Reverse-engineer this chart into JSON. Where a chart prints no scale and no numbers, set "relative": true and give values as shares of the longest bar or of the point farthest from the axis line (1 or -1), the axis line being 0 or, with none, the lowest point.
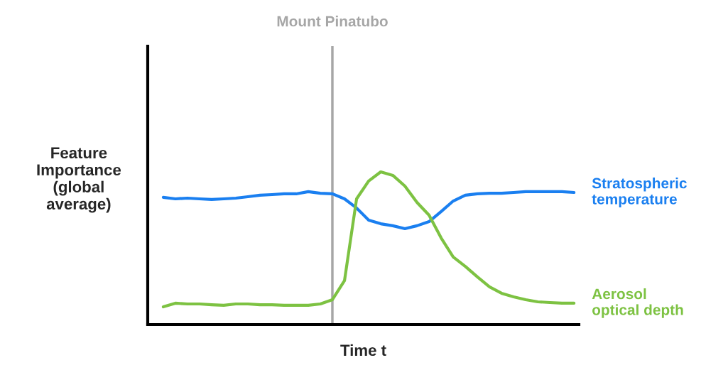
{
  "chart_data": {
    "type": "line",
    "relative": true,
    "xlabel": "Time t",
    "ylabel": "Feature Importance (global average)",
    "categories": [
      null,
      null,
      null,
      null,
      null,
      null,
      null,
      null,
      null,
      null,
      null,
      null,
      null,
      null,
      null,
      null,
      null,
      null,
      null,
      null,
      null,
      null,
      null,
      null,
      null,
      null,
      null,
      null,
      null,
      null,
      null,
      null,
      null,
      null,
      null
    ],
    "series": [
      {
        "name": "Stratospheric temperature",
        "color": "#1a7ff0",
        "values": [
          0.833,
          0.823,
          0.828,
          0.823,
          0.819,
          0.823,
          0.828,
          0.837,
          0.847,
          0.851,
          0.856,
          0.856,
          0.87,
          0.86,
          0.856,
          0.823,
          0.763,
          0.684,
          0.66,
          0.647,
          0.628,
          0.647,
          0.674,
          0.74,
          0.809,
          0.847,
          0.856,
          0.86,
          0.86,
          0.865,
          0.87,
          0.87,
          0.87,
          0.87,
          0.865
        ]
      },
      {
        "name": "Aerosol optical depth",
        "color": "#7dc242",
        "values": [
          0.116,
          0.14,
          0.135,
          0.135,
          0.13,
          0.126,
          0.135,
          0.135,
          0.13,
          0.13,
          0.126,
          0.126,
          0.126,
          0.135,
          0.163,
          0.288,
          0.823,
          0.94,
          1.0,
          0.977,
          0.907,
          0.8,
          0.716,
          0.567,
          0.442,
          0.381,
          0.312,
          0.247,
          0.205,
          0.181,
          0.163,
          0.149,
          0.144,
          0.14,
          0.14
        ]
      }
    ],
    "annotations": [
      "Mount Pinatubo"
    ],
    "legend": false,
    "marker": "none",
    "line_style": "solid"
  }
}
